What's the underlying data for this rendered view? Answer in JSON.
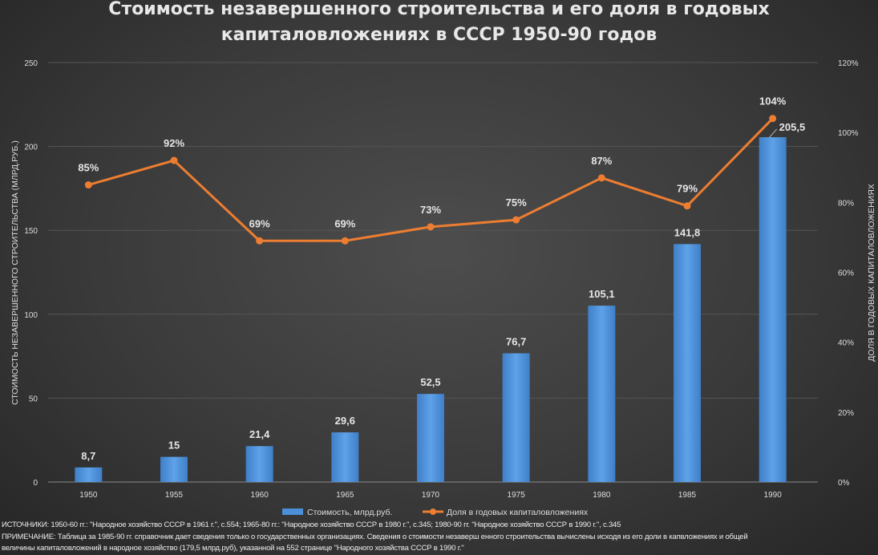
{
  "chart_data": {
    "type": "bar+line",
    "title_lines": [
      "Стоимость незавершенного строительства и его доля в годовых",
      "капиталовложениях в СССР 1950-90 годов"
    ],
    "categories": [
      "1950",
      "1955",
      "1960",
      "1965",
      "1970",
      "1975",
      "1980",
      "1985",
      "1990"
    ],
    "series": [
      {
        "name": "Стоимость, млрд.руб.",
        "type": "bar",
        "axis": "left",
        "color": "#4a8fd8",
        "values": [
          8.7,
          15,
          21.4,
          29.6,
          52.5,
          76.7,
          105.1,
          141.8,
          205.5
        ],
        "labels": [
          "8,7",
          "15",
          "21,4",
          "29,6",
          "52,5",
          "76,7",
          "105,1",
          "141,8",
          "205,5"
        ]
      },
      {
        "name": "Доля в годовых капиталовложениях",
        "type": "line",
        "axis": "right",
        "color": "#ed7d31",
        "values": [
          85,
          92,
          69,
          69,
          73,
          75,
          87,
          79,
          104
        ],
        "labels": [
          "85%",
          "92%",
          "69%",
          "69%",
          "73%",
          "75%",
          "87%",
          "79%",
          "104%"
        ]
      }
    ],
    "ylabel": "СТОИМОСТЬ НЕЗАВЕРШЕННОГО СТРОИТЕЛЬСТВА (МЛРД.РУБ.)",
    "ylabel_right": "ДОЛЯ В ГОДОВЫХ КАПИТАЛОВЛОЖЕНИЯХ",
    "ylim": [
      0,
      250
    ],
    "yticks": [
      "0",
      "50",
      "100",
      "150",
      "200",
      "250"
    ],
    "ylim_right": [
      0,
      120
    ],
    "yticks_right": [
      "0%",
      "20%",
      "40%",
      "60%",
      "80%",
      "100%",
      "120%"
    ],
    "grid": true,
    "legend": "bottom"
  },
  "footer": {
    "sources": "ИСТОЧНИКИ:  1950-60 гг.: \"Народное хозяйство СССР в 1961 г.\", с.554; 1965-80 гг.: \"Народное хозяйство СССР в 1980 г.\", с.345; 1980-90 гг. \"Народное хозяйство СССР в 1990 г.\", с.345",
    "note1": "ПРИМЕЧАНИЕ: Таблица за 1985-90 гг. справочник дает сведения только о государственных организациях. Сведения о стоимости незаверш енного строительства вычислены исходя из его доли в капвложениях и общей",
    "note2": "величины капиталовложений в народное хозяйство (179,5 млрд.руб), указанной на 552 странице \"Народного хозяйства СССР в 1990 г.\""
  }
}
